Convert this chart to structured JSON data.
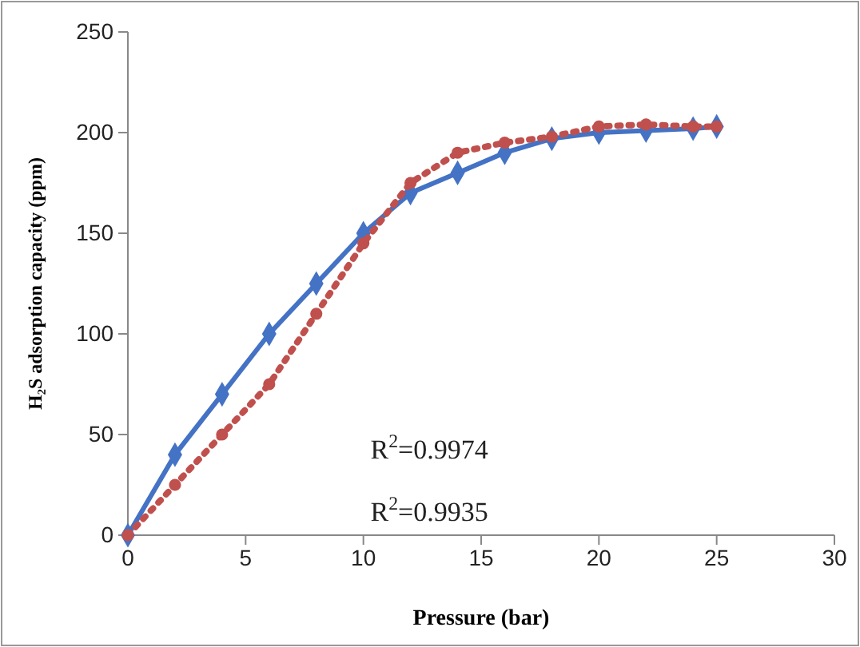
{
  "chart_data": {
    "type": "line",
    "xlabel": "Pressure (bar)",
    "ylabel": "H₂S adsorption capacity (ppm)",
    "x": [
      0,
      2,
      4,
      6,
      8,
      10,
      12,
      14,
      16,
      18,
      20,
      22,
      24,
      25
    ],
    "xlim": [
      0,
      30
    ],
    "xticks": [
      0,
      5,
      10,
      15,
      20,
      25,
      30
    ],
    "ylim": [
      0,
      250
    ],
    "yticks": [
      0,
      50,
      100,
      150,
      200,
      250
    ],
    "grid": false,
    "series": [
      {
        "color": "#4472c4",
        "marker": "diamond",
        "line_style": "solid",
        "values": [
          0,
          40,
          70,
          100,
          125,
          150,
          170,
          180,
          190,
          197,
          200,
          201,
          202,
          203
        ]
      },
      {
        "color": "#c0504d",
        "marker": "circle",
        "line_style": "dotted",
        "values": [
          0,
          25,
          50,
          75,
          110,
          145,
          175,
          190,
          195,
          198,
          203,
          204,
          203,
          203
        ]
      }
    ],
    "annotations": [
      "R$^{2}$=0.9974",
      "R$^{2}$=0.9935"
    ]
  }
}
